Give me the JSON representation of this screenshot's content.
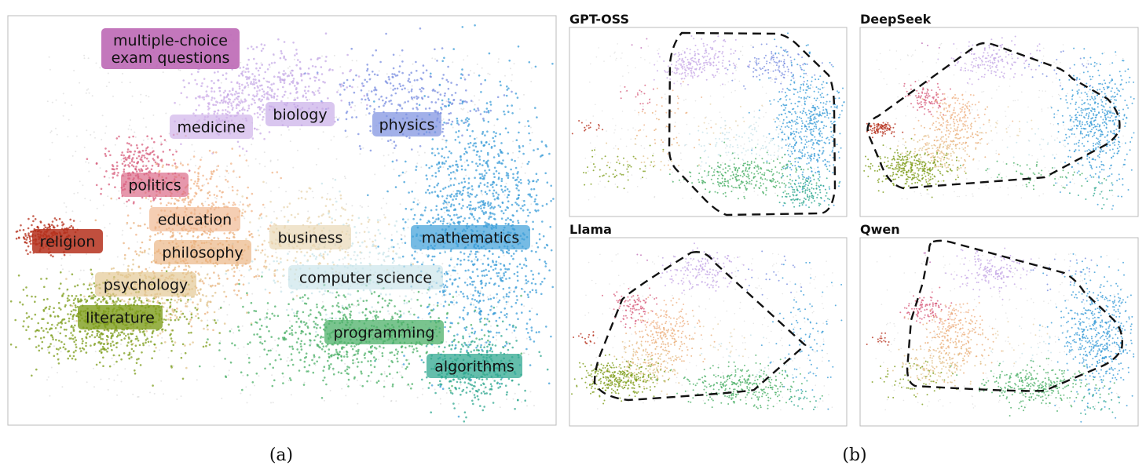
{
  "figure": {
    "caption_a": "(a)",
    "caption_b": "(b)"
  },
  "chart_data": [
    {
      "type": "scatter",
      "title": "",
      "grid": false,
      "clusters": [
        {
          "name": "multiple-choice exam questions",
          "label_lines": [
            "multiple-choice",
            "exam questions"
          ],
          "color": "#c070b8"
        },
        {
          "name": "biology",
          "label_lines": [
            "biology"
          ],
          "color": "#c4a8e6"
        },
        {
          "name": "medicine",
          "label_lines": [
            "medicine"
          ],
          "color": "#cdaee8"
        },
        {
          "name": "physics",
          "label_lines": [
            "physics"
          ],
          "color": "#7b8fe0"
        },
        {
          "name": "politics",
          "label_lines": [
            "politics"
          ],
          "color": "#d8607f"
        },
        {
          "name": "education",
          "label_lines": [
            "education"
          ],
          "color": "#f0b48a"
        },
        {
          "name": "religion",
          "label_lines": [
            "religion"
          ],
          "color": "#b5301c"
        },
        {
          "name": "philosophy",
          "label_lines": [
            "philosophy"
          ],
          "color": "#eab07c"
        },
        {
          "name": "business",
          "label_lines": [
            "business"
          ],
          "color": "#e8d6b0"
        },
        {
          "name": "mathematics",
          "label_lines": [
            "mathematics"
          ],
          "color": "#3c9ed8"
        },
        {
          "name": "computer science",
          "label_lines": [
            "computer science"
          ],
          "color": "#c8e4ea"
        },
        {
          "name": "psychology",
          "label_lines": [
            "psychology"
          ],
          "color": "#e2c48e"
        },
        {
          "name": "literature",
          "label_lines": [
            "literature"
          ],
          "color": "#7e9e1c"
        },
        {
          "name": "programming",
          "label_lines": [
            "programming"
          ],
          "color": "#4cb068"
        },
        {
          "name": "algorithms",
          "label_lines": [
            "algorithms"
          ],
          "color": "#30a890"
        }
      ]
    },
    {
      "type": "scatter",
      "title": "GPT-OSS",
      "grid": false
    },
    {
      "type": "scatter",
      "title": "DeepSeek",
      "grid": false
    },
    {
      "type": "scatter",
      "title": "Llama",
      "grid": false
    },
    {
      "type": "scatter",
      "title": "Qwen",
      "grid": false
    }
  ]
}
